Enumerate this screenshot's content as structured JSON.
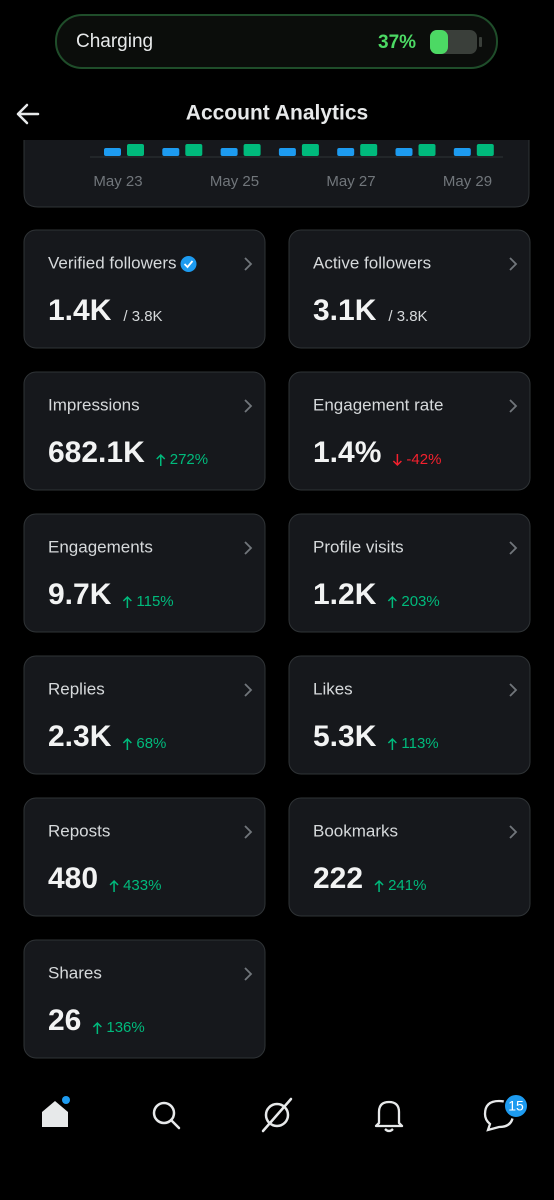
{
  "status_bar": {
    "label": "Charging",
    "battery": "37%"
  },
  "header": {
    "title": "Account Analytics"
  },
  "chart": {
    "x_labels": [
      "May 23",
      "May 25",
      "May 27",
      "May 29"
    ]
  },
  "cards": [
    {
      "label": "Verified followers",
      "value": "1.4K",
      "total": "/ 3.8K",
      "verified": true
    },
    {
      "label": "Active followers",
      "value": "3.1K",
      "total": "/ 3.8K"
    },
    {
      "label": "Impressions",
      "value": "682.1K",
      "change": "272%",
      "direction": "up"
    },
    {
      "label": "Engagement rate",
      "value": "1.4%",
      "change": "-42%",
      "direction": "down"
    },
    {
      "label": "Engagements",
      "value": "9.7K",
      "change": "115%",
      "direction": "up"
    },
    {
      "label": "Profile visits",
      "value": "1.2K",
      "change": "203%",
      "direction": "up"
    },
    {
      "label": "Replies",
      "value": "2.3K",
      "change": "68%",
      "direction": "up"
    },
    {
      "label": "Likes",
      "value": "5.3K",
      "change": "113%",
      "direction": "up"
    },
    {
      "label": "Reposts",
      "value": "480",
      "change": "433%",
      "direction": "up"
    },
    {
      "label": "Bookmarks",
      "value": "222",
      "change": "241%",
      "direction": "up"
    },
    {
      "label": "Shares",
      "value": "26",
      "change": "136%",
      "direction": "up"
    }
  ],
  "nav": {
    "badge": "15"
  }
}
